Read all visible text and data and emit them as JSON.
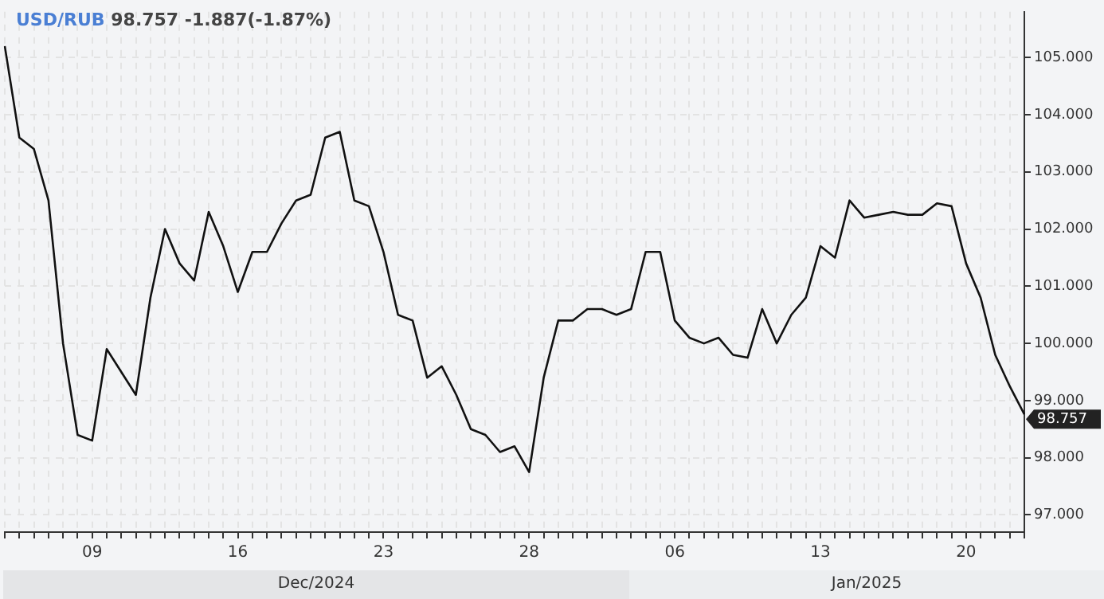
{
  "chart_data": {
    "type": "line",
    "title": "USD/RUB",
    "subtitle": "98.757 -1.887(-1.87%)",
    "categories": [
      null,
      null,
      null,
      null,
      null,
      null,
      "09",
      null,
      null,
      null,
      null,
      null,
      null,
      null,
      null,
      null,
      "16",
      null,
      null,
      null,
      null,
      null,
      null,
      null,
      null,
      null,
      "23",
      null,
      null,
      null,
      null,
      null,
      null,
      null,
      null,
      null,
      "28",
      null,
      null,
      null,
      null,
      null,
      null,
      null,
      null,
      null,
      "06",
      null,
      null,
      null,
      null,
      null,
      null,
      null,
      null,
      null,
      "13",
      null,
      null,
      null,
      null,
      null,
      null,
      null,
      null,
      null,
      "20",
      null,
      null,
      null,
      null
    ],
    "series": [
      {
        "color": "#111111",
        "values": [
          105.2,
          103.6,
          103.4,
          102.5,
          100.0,
          98.4,
          98.3,
          99.9,
          99.5,
          99.1,
          100.8,
          102.0,
          101.4,
          101.1,
          102.3,
          101.7,
          100.9,
          101.6,
          101.6,
          102.1,
          102.5,
          102.6,
          103.6,
          103.7,
          102.5,
          102.4,
          101.6,
          100.5,
          100.4,
          99.4,
          99.6,
          99.1,
          98.5,
          98.4,
          98.1,
          98.2,
          97.75,
          99.4,
          100.4,
          100.4,
          100.6,
          100.6,
          100.5,
          100.6,
          101.6,
          101.6,
          100.4,
          100.1,
          100.0,
          100.1,
          99.8,
          99.75,
          100.6,
          100.0,
          100.5,
          100.8,
          101.7,
          101.5,
          102.5,
          102.2,
          102.25,
          102.3,
          102.25,
          102.25,
          102.45,
          102.4,
          101.4,
          100.8,
          99.8,
          99.25,
          98.76
        ]
      }
    ],
    "ylim": [
      96.7,
      105.8
    ],
    "yticks": [
      {
        "value": 97,
        "label": "97.000"
      },
      {
        "value": 98,
        "label": "98.000"
      },
      {
        "value": 99,
        "label": "99.000"
      },
      {
        "value": 100,
        "label": "100.000"
      },
      {
        "value": 101,
        "label": "101.000"
      },
      {
        "value": 102,
        "label": "102.000"
      },
      {
        "value": 103,
        "label": "103.000"
      },
      {
        "value": 104,
        "label": "104.000"
      },
      {
        "value": 105,
        "label": "105.000"
      }
    ],
    "grid": true,
    "legend": false,
    "marker": "none",
    "line_style": "solid",
    "annotations": [
      "98.757",
      "Dec/2024",
      "Jan/2025"
    ]
  }
}
